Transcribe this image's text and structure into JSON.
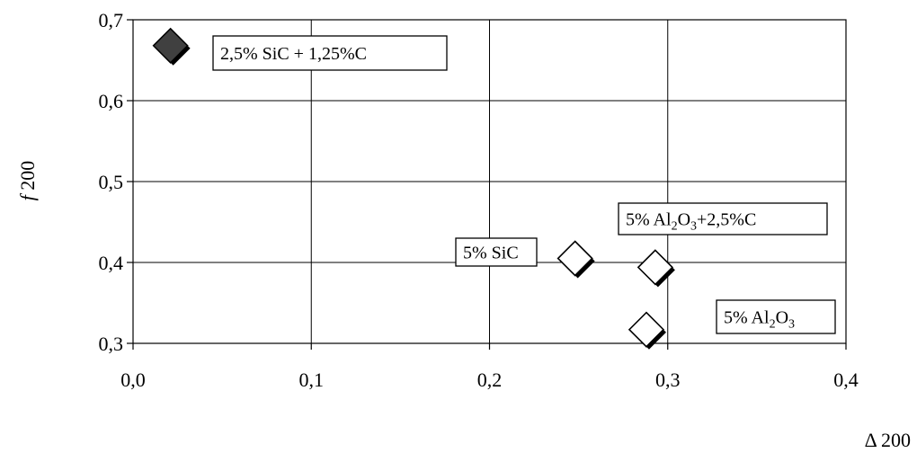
{
  "chart_data": {
    "type": "scatter",
    "xlabel": "Δ 200",
    "ylabel_italic": "f",
    "ylabel_rest": " 200",
    "xlim": [
      0.0,
      0.4
    ],
    "ylim": [
      0.3,
      0.7
    ],
    "x_ticks": [
      "0,0",
      "0,1",
      "0,2",
      "0,3",
      "0,4"
    ],
    "y_ticks": [
      "0,3",
      "0,4",
      "0,5",
      "0,6",
      "0,7"
    ],
    "grid": true,
    "points": [
      {
        "x": 0.021,
        "y": 0.668,
        "style": "filled-dark",
        "label": [
          {
            "t": "2,5% SiC + 1,25%C"
          }
        ]
      },
      {
        "x": 0.248,
        "y": 0.405,
        "style": "hollow-black-corner",
        "label": [
          {
            "t": "5% SiC"
          }
        ]
      },
      {
        "x": 0.293,
        "y": 0.394,
        "style": "hollow-black-corner",
        "label": [
          {
            "t": "5% Al"
          },
          {
            "t": "2",
            "sub": true
          },
          {
            "t": "O"
          },
          {
            "t": "3",
            "sub": true
          },
          {
            "t": "+2,5%C"
          }
        ]
      },
      {
        "x": 0.288,
        "y": 0.317,
        "style": "hollow-black-corner",
        "label": [
          {
            "t": "5% Al"
          },
          {
            "t": "2",
            "sub": true
          },
          {
            "t": "O"
          },
          {
            "t": "3",
            "sub": true
          }
        ]
      }
    ]
  }
}
